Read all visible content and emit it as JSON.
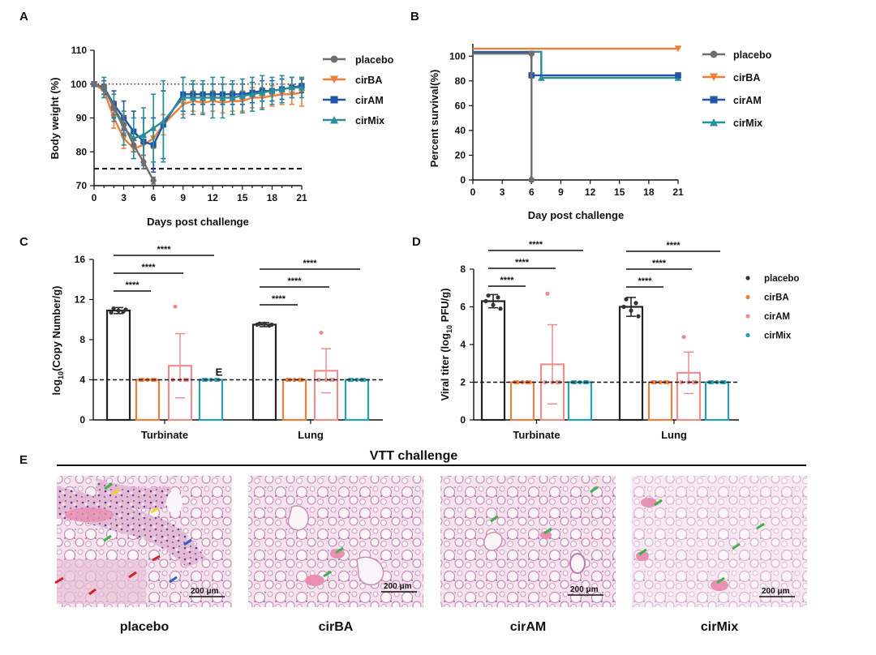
{
  "colors": {
    "placebo": "#6e6e6e",
    "cirBA": "#f07f3c",
    "cirAM": "#2456a6",
    "cirMix": "#2a8e98",
    "cirAM_bar": "#ec8e8e",
    "cirMix_bar": "#25a0ba",
    "placebo_dot": "#333333"
  },
  "panels": {
    "A": "A",
    "B": "B",
    "C": "C",
    "D": "D",
    "E": "E"
  },
  "chart_data": [
    {
      "id": "A",
      "type": "line",
      "xlabel": "Days post challenge",
      "ylabel": "Body weight (%)",
      "xlim": [
        0,
        21
      ],
      "ylim": [
        70,
        110
      ],
      "xticks": [
        0,
        3,
        6,
        9,
        12,
        15,
        18,
        21
      ],
      "yticks": [
        70,
        80,
        90,
        100,
        110
      ],
      "ref_dotted": 100,
      "ref_dashed": 75,
      "legend": "right",
      "series": [
        {
          "name": "placebo",
          "marker": "circle",
          "x": [
            0,
            1,
            2,
            3,
            4,
            5,
            6
          ],
          "y": [
            100,
            99,
            93,
            88,
            82,
            77,
            71.5
          ],
          "err": [
            0,
            1,
            2,
            2.5,
            2,
            2,
            1
          ]
        },
        {
          "name": "cirBA",
          "marker": "triangle-down",
          "x": [
            0,
            1,
            2,
            3,
            4,
            5,
            6,
            7,
            9,
            10,
            11,
            12,
            13,
            14,
            15,
            16,
            17,
            18,
            19,
            20,
            21
          ],
          "y": [
            100,
            98,
            90,
            84,
            81,
            82,
            84,
            88,
            94,
            95,
            94.5,
            95,
            94.5,
            95,
            95,
            96,
            96,
            96.5,
            97,
            97,
            97.5
          ],
          "err": [
            0,
            2,
            3,
            3,
            3,
            3,
            3,
            3,
            3,
            3,
            3,
            3,
            3,
            3,
            3,
            3,
            3,
            3,
            3,
            3,
            4
          ]
        },
        {
          "name": "cirAM",
          "marker": "square",
          "x": [
            0,
            1,
            2,
            3,
            4,
            5,
            6,
            7,
            9,
            10,
            11,
            12,
            13,
            14,
            15,
            16,
            17,
            18,
            19,
            20,
            21
          ],
          "y": [
            100,
            99,
            94,
            90,
            86,
            83,
            82,
            88,
            97,
            97,
            97,
            97,
            97,
            97,
            97,
            97.5,
            98,
            98,
            98.5,
            99,
            99.5
          ],
          "err": [
            0,
            2,
            4,
            5,
            6,
            7,
            8,
            10,
            5,
            3,
            3,
            3,
            3,
            3,
            3,
            3,
            3,
            3,
            3,
            3,
            2
          ]
        },
        {
          "name": "cirMix",
          "marker": "triangle-up",
          "x": [
            0,
            1,
            2,
            3,
            4,
            5,
            6,
            7,
            9,
            10,
            11,
            12,
            13,
            14,
            15,
            16,
            17,
            18,
            19,
            20,
            21
          ],
          "y": [
            100,
            99,
            93,
            87,
            84,
            85,
            87,
            89,
            96,
            96,
            96,
            96,
            96,
            96,
            96.5,
            97,
            97.5,
            98,
            98.5,
            99,
            99
          ],
          "err": [
            0,
            3,
            4,
            5,
            6,
            8,
            10,
            12,
            6,
            5,
            5,
            6,
            6,
            5,
            5,
            5,
            5,
            4,
            4,
            3,
            3
          ]
        }
      ]
    },
    {
      "id": "B",
      "type": "line",
      "xlabel": "Day post challenge",
      "ylabel": "Percent survival(%)",
      "xlim": [
        0,
        21
      ],
      "ylim": [
        0,
        110
      ],
      "xticks": [
        0,
        3,
        6,
        9,
        12,
        15,
        18,
        21
      ],
      "yticks": [
        0,
        20,
        40,
        60,
        80,
        100
      ],
      "legend": "right",
      "series": [
        {
          "name": "placebo",
          "marker": "circle",
          "steps": [
            [
              0,
              102
            ],
            [
              6,
              102
            ],
            [
              6,
              0
            ]
          ]
        },
        {
          "name": "cirBA",
          "marker": "triangle-down",
          "steps": [
            [
              0,
              106
            ],
            [
              21,
              106
            ]
          ]
        },
        {
          "name": "cirAM",
          "marker": "square",
          "steps": [
            [
              0,
              103
            ],
            [
              6,
              103
            ],
            [
              6,
              84.5
            ],
            [
              21,
              84.5
            ]
          ]
        },
        {
          "name": "cirMix",
          "marker": "triangle-up",
          "steps": [
            [
              0,
              103.5
            ],
            [
              7,
              103.5
            ],
            [
              7,
              82.5
            ],
            [
              21,
              82.5
            ]
          ]
        }
      ]
    },
    {
      "id": "C",
      "type": "bar",
      "ylabel": "log10(Copy Number/g)",
      "ylim": [
        0,
        16
      ],
      "yticks": [
        0,
        4,
        8,
        12,
        16
      ],
      "lod": 4,
      "groups": [
        "Turbinate",
        "Lung"
      ],
      "series_names": [
        "placebo",
        "cirBA",
        "cirAM",
        "cirMix"
      ],
      "values": [
        [
          10.9,
          4.0,
          5.4,
          4.0
        ],
        [
          9.5,
          4.0,
          4.9,
          4.0
        ]
      ],
      "errors": [
        [
          0.3,
          0,
          3.2,
          0
        ],
        [
          0.2,
          0,
          2.2,
          0
        ]
      ],
      "points": [
        [
          [
            11.1,
            10.8,
            10.7,
            10.9,
            11.0
          ],
          [
            4,
            4,
            4,
            4,
            4
          ],
          [
            11.3,
            4,
            4,
            4,
            4
          ],
          [
            4,
            4,
            4,
            4,
            4
          ]
        ],
        [
          [
            9.6,
            9.4,
            9.5,
            9.6,
            9.5
          ],
          [
            4,
            4,
            4,
            4,
            4
          ],
          [
            8.7,
            4,
            4,
            4,
            4
          ],
          [
            4,
            4,
            4,
            4,
            4
          ]
        ]
      ],
      "significance": [
        {
          "group": 0,
          "to": 1,
          "label": "****"
        },
        {
          "group": 0,
          "to": 2,
          "label": "****"
        },
        {
          "group": 0,
          "to": 3,
          "label": "****"
        },
        {
          "group": 1,
          "to": 1,
          "label": "****"
        },
        {
          "group": 1,
          "to": 2,
          "label": "****"
        },
        {
          "group": 1,
          "to": 3,
          "label": "****"
        }
      ],
      "annotation": "E"
    },
    {
      "id": "D",
      "type": "bar",
      "ylabel": "Viral titer (log10 PFU/g)",
      "ylim": [
        0,
        8
      ],
      "yticks": [
        0,
        2,
        4,
        6,
        8
      ],
      "lod": 2,
      "groups": [
        "Turbinate",
        "Lung"
      ],
      "series_names": [
        "placebo",
        "cirBA",
        "cirAM",
        "cirMix"
      ],
      "values": [
        [
          6.3,
          2.0,
          2.95,
          2.0
        ],
        [
          6.0,
          2.0,
          2.5,
          2.0
        ]
      ],
      "errors": [
        [
          0.35,
          0,
          2.1,
          0
        ],
        [
          0.5,
          0,
          1.1,
          0
        ]
      ],
      "points": [
        [
          [
            6.6,
            6.5,
            6.3,
            6.1,
            5.9
          ],
          [
            2,
            2,
            2,
            2,
            2
          ],
          [
            6.7,
            2,
            2,
            2,
            2
          ],
          [
            2,
            2,
            2,
            2,
            2
          ]
        ],
        [
          [
            6.4,
            6.2,
            6.0,
            5.8,
            5.5
          ],
          [
            2,
            2,
            2,
            2,
            2
          ],
          [
            4.4,
            2,
            2,
            2,
            2
          ],
          [
            2,
            2,
            2,
            2,
            2
          ]
        ]
      ],
      "significance": [
        {
          "group": 0,
          "to": 1,
          "label": "****"
        },
        {
          "group": 0,
          "to": 2,
          "label": "****"
        },
        {
          "group": 0,
          "to": 3,
          "label": "****"
        },
        {
          "group": 1,
          "to": 1,
          "label": "****"
        },
        {
          "group": 1,
          "to": 2,
          "label": "****"
        },
        {
          "group": 1,
          "to": 3,
          "label": "****"
        }
      ],
      "legend": "right"
    }
  ],
  "histology": {
    "title": "VTT challenge",
    "scale_bar": "200 μm",
    "panels": [
      "placebo",
      "cirBA",
      "cirAM",
      "cirMix"
    ]
  }
}
